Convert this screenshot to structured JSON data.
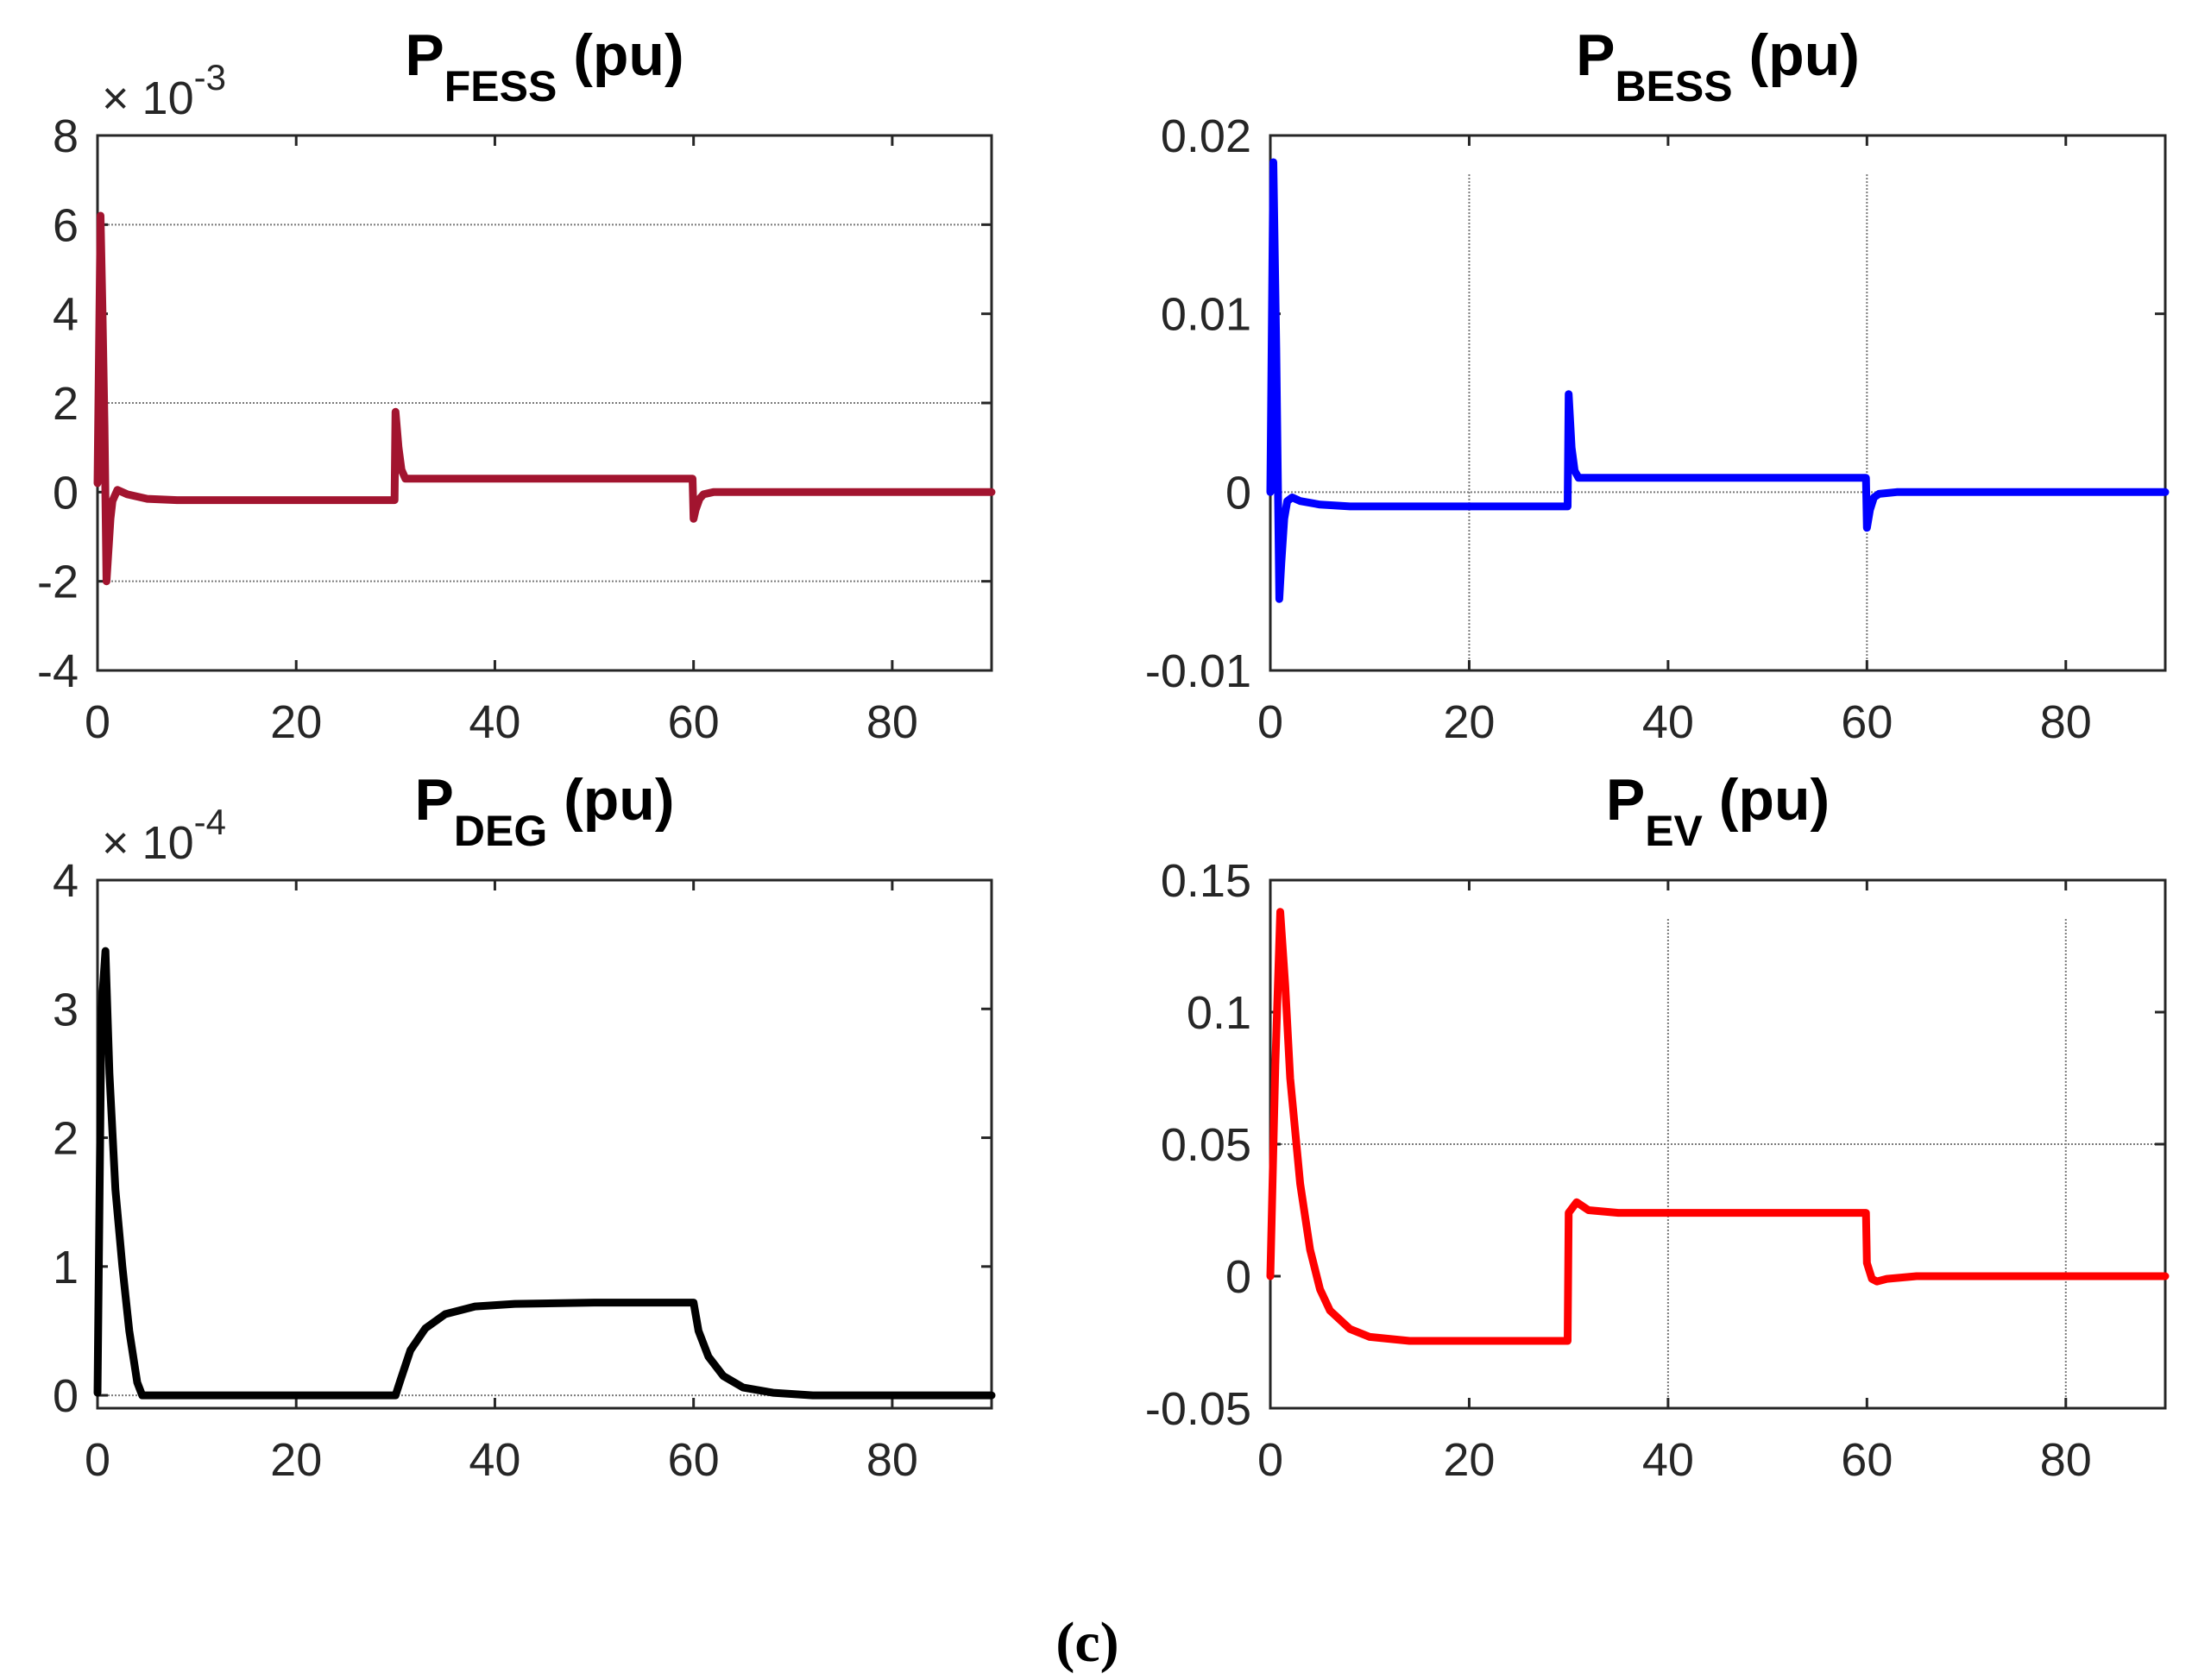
{
  "caption": "(c)",
  "chart_data": [
    {
      "type": "line",
      "title": "P",
      "title_subscript": "FESS",
      "title_suffix": " (pu)",
      "exponent_base": "× 10",
      "exponent_power": "-3",
      "xlim": [
        0,
        90
      ],
      "ylim": [
        -4,
        8
      ],
      "xticks": [
        0,
        20,
        40,
        60,
        80
      ],
      "xtick_labels": [
        "0",
        "20",
        "40",
        "60",
        "80"
      ],
      "yticks": [
        -4,
        -2,
        0,
        2,
        4,
        6,
        8
      ],
      "ytick_labels": [
        "-4",
        "-2",
        "0",
        "2",
        "4",
        "6",
        "8"
      ],
      "grid_y": [
        -2,
        2,
        6
      ],
      "grid_x": [],
      "color": "#a2142f",
      "series": [
        {
          "name": "P_FESS",
          "x": [
            0,
            0.3,
            0.5,
            0.7,
            0.9,
            1.1,
            1.3,
            1.5,
            2,
            3,
            5,
            8,
            15,
            29.9,
            30,
            30.3,
            30.6,
            31,
            32,
            35,
            59.9,
            60,
            60.2,
            60.6,
            61,
            62,
            65,
            90
          ],
          "y": [
            0.2,
            6.2,
            4.0,
            1.5,
            -2.0,
            -1.3,
            -0.6,
            -0.2,
            0.05,
            -0.05,
            -0.15,
            -0.18,
            -0.18,
            -0.18,
            1.8,
            1.0,
            0.5,
            0.3,
            0.3,
            0.3,
            0.3,
            -0.6,
            -0.4,
            -0.15,
            -0.05,
            0.0,
            0.0,
            0.0
          ]
        }
      ]
    },
    {
      "type": "line",
      "title": "P",
      "title_subscript": "BESS",
      "title_suffix": " (pu)",
      "exponent_base": "",
      "exponent_power": "",
      "xlim": [
        0,
        90
      ],
      "ylim": [
        -0.01,
        0.02
      ],
      "xticks": [
        0,
        20,
        40,
        60,
        80
      ],
      "xtick_labels": [
        "0",
        "20",
        "40",
        "60",
        "80"
      ],
      "yticks": [
        -0.01,
        0,
        0.01,
        0.02
      ],
      "ytick_labels": [
        "-0.01",
        "0",
        "0.01",
        "0.02"
      ],
      "grid_y": [
        0
      ],
      "grid_x": [
        20,
        60
      ],
      "color": "#0000ff",
      "series": [
        {
          "name": "P_BESS",
          "x": [
            0,
            0.3,
            0.6,
            0.9,
            1.1,
            1.4,
            1.7,
            2.2,
            3,
            5,
            8,
            12,
            29.9,
            30,
            30.3,
            30.6,
            31,
            33,
            59.9,
            60,
            60.3,
            60.7,
            61.2,
            63,
            90
          ],
          "y": [
            0.0,
            0.0185,
            0.008,
            -0.006,
            -0.004,
            -0.0015,
            -0.0005,
            -0.0003,
            -0.0005,
            -0.0007,
            -0.0008,
            -0.0008,
            -0.0008,
            0.0055,
            0.0025,
            0.0012,
            0.0008,
            0.0008,
            0.0008,
            -0.002,
            -0.001,
            -0.0003,
            -0.0001,
            0.0,
            0.0
          ]
        }
      ]
    },
    {
      "type": "line",
      "title": "P",
      "title_subscript": "DEG",
      "title_suffix": " (pu)",
      "exponent_base": "× 10",
      "exponent_power": "-4",
      "xlim": [
        0,
        90
      ],
      "ylim": [
        -0.1,
        4
      ],
      "xticks": [
        0,
        20,
        40,
        60,
        80
      ],
      "xtick_labels": [
        "0",
        "20",
        "40",
        "60",
        "80"
      ],
      "yticks": [
        0,
        1,
        2,
        3,
        4
      ],
      "ytick_labels": [
        "0",
        "1",
        "2",
        "3",
        "4"
      ],
      "grid_y": [
        0
      ],
      "grid_x": [],
      "color": "#000000",
      "series": [
        {
          "name": "P_DEG",
          "x": [
            0,
            0.4,
            0.8,
            1.2,
            1.8,
            2.5,
            3.2,
            4,
            4.5,
            30,
            30.5,
            31.5,
            33,
            35,
            38,
            42,
            50,
            59.9,
            60,
            60.5,
            61.5,
            63,
            65,
            68,
            72,
            90
          ],
          "y": [
            0.02,
            3.0,
            3.45,
            2.5,
            1.6,
            1.0,
            0.5,
            0.1,
            0.0,
            0.0,
            0.12,
            0.35,
            0.52,
            0.63,
            0.69,
            0.71,
            0.72,
            0.72,
            0.72,
            0.5,
            0.3,
            0.15,
            0.06,
            0.02,
            0.0,
            0.0
          ]
        }
      ]
    },
    {
      "type": "line",
      "title": "P",
      "title_subscript": "EV",
      "title_suffix": " (pu)",
      "exponent_base": "",
      "exponent_power": "",
      "xlim": [
        0,
        90
      ],
      "ylim": [
        -0.05,
        0.15
      ],
      "xticks": [
        0,
        20,
        40,
        60,
        80
      ],
      "xtick_labels": [
        "0",
        "20",
        "40",
        "60",
        "80"
      ],
      "yticks": [
        -0.05,
        0,
        0.05,
        0.1,
        0.15
      ],
      "ytick_labels": [
        "-0.05",
        "0",
        "0.05",
        "0.1",
        "0.15"
      ],
      "grid_y": [
        0.05
      ],
      "grid_x": [
        40,
        80
      ],
      "color": "#ff0000",
      "series": [
        {
          "name": "P_EV",
          "x": [
            0,
            0.5,
            1,
            1.5,
            2,
            3,
            4,
            5,
            6,
            8,
            10,
            14,
            20,
            29.9,
            30,
            30.8,
            32,
            35,
            59.9,
            60,
            60.5,
            61,
            62,
            65,
            90
          ],
          "y": [
            0.0,
            0.08,
            0.138,
            0.11,
            0.075,
            0.035,
            0.01,
            -0.005,
            -0.013,
            -0.02,
            -0.023,
            -0.0245,
            -0.0245,
            -0.0245,
            0.024,
            0.028,
            0.025,
            0.024,
            0.024,
            0.005,
            -0.001,
            -0.002,
            -0.001,
            0.0,
            0.0
          ]
        }
      ]
    }
  ]
}
